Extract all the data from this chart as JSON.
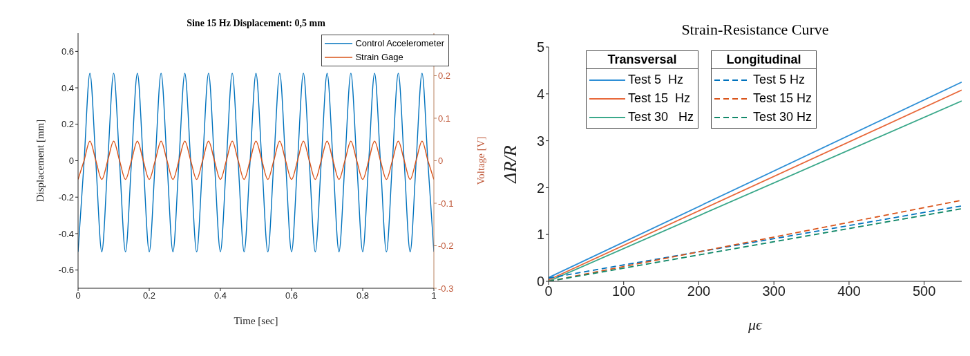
{
  "chart_data": [
    {
      "type": "line",
      "title": "Sine 15 Hz Displacement: 0,5 mm",
      "xlabel": "Time [sec]",
      "ylabel": "Displacement [mm]",
      "y2label": "Voltage [V]",
      "x": [
        0,
        0.0167,
        0.0333,
        0.05,
        0.0667,
        0.0833,
        0.1,
        0.1167,
        0.1333,
        0.15,
        0.1667,
        0.1833,
        0.2,
        0.2167,
        0.2333,
        0.25,
        0.2667,
        0.2833,
        0.3,
        0.3167,
        0.3333,
        0.35,
        0.3667,
        0.3833,
        0.4,
        0.4167,
        0.4333,
        0.45,
        0.4667,
        0.4833,
        0.5,
        0.5167,
        0.5333,
        0.55,
        0.5667,
        0.5833,
        0.6,
        0.6167,
        0.6333,
        0.65,
        0.6667,
        0.6833,
        0.7,
        0.7167,
        0.7333,
        0.75,
        0.7667,
        0.7833,
        0.8,
        0.8167,
        0.8333,
        0.85,
        0.8667,
        0.8833,
        0.9,
        0.9167,
        0.9333,
        0.95,
        0.9667,
        0.9833,
        1
      ],
      "series": [
        {
          "name": "Control Accelerometer",
          "color": "#0072bd",
          "values": [
            -0.5,
            -0.01,
            0.48,
            -0.01,
            -0.5,
            -0.01,
            0.48,
            -0.01,
            -0.5,
            -0.01,
            0.48,
            -0.01,
            -0.5,
            -0.01,
            0.48,
            -0.01,
            -0.5,
            -0.01,
            0.48,
            -0.01,
            -0.5,
            -0.01,
            0.48,
            -0.01,
            -0.5,
            -0.01,
            0.48,
            -0.01,
            -0.5,
            -0.01,
            0.48,
            -0.01,
            -0.5,
            -0.01,
            0.48,
            -0.01,
            -0.5,
            -0.01,
            0.48,
            -0.01,
            -0.5,
            -0.01,
            0.48,
            -0.01,
            -0.5,
            -0.01,
            0.48,
            -0.01,
            -0.5,
            -0.01,
            0.48,
            -0.01,
            -0.5,
            -0.01,
            0.48,
            -0.01,
            -0.5,
            -0.01,
            0.48,
            -0.01,
            -0.5
          ]
        },
        {
          "name": "Strain Gage",
          "color": "#d95319",
          "axis": "y2",
          "values": [
            -0.044,
            0,
            0.046,
            0,
            -0.044,
            0,
            0.046,
            0,
            -0.044,
            0,
            0.046,
            0,
            -0.044,
            0,
            0.046,
            0,
            -0.044,
            0,
            0.046,
            0,
            -0.044,
            0,
            0.046,
            0,
            -0.044,
            0,
            0.046,
            0,
            -0.044,
            0,
            0.046,
            0,
            -0.044,
            0,
            0.046,
            0,
            -0.044,
            0,
            0.046,
            0,
            -0.044,
            0,
            0.046,
            0,
            -0.044,
            0,
            0.046,
            0,
            -0.044,
            0,
            0.046,
            0,
            -0.044,
            0,
            0.046,
            0,
            -0.044,
            0,
            0.046,
            0,
            -0.044
          ]
        }
      ],
      "xlim": [
        0,
        1
      ],
      "xticks": [
        0,
        0.2,
        0.4,
        0.6,
        0.8,
        1
      ],
      "ylim": [
        -0.7,
        0.7
      ],
      "yticks": [
        -0.6,
        -0.4,
        -0.2,
        0,
        0.2,
        0.4,
        0.6
      ],
      "y2lim": [
        -0.3,
        0.3
      ],
      "y2ticks": [
        -0.3,
        -0.2,
        -0.1,
        0,
        0.1,
        0.2
      ],
      "legend": "top right",
      "grid": false,
      "line_style": "solid"
    },
    {
      "type": "line",
      "title": "Strain-Resistance Curve",
      "xlabel": "μϵ",
      "ylabel": "ΔR/R",
      "annotations": [
        "Transversal",
        "Longitudinal"
      ],
      "x": [
        0,
        550
      ],
      "series": [
        {
          "name": "Test 5  Hz",
          "color": "#2e8fd6",
          "values": [
            0.08,
            4.25
          ],
          "line_style": "solid"
        },
        {
          "name": "Test 15  Hz",
          "color": "#e8683a",
          "values": [
            0.03,
            4.08
          ],
          "line_style": "solid"
        },
        {
          "name": "Test 30   Hz",
          "color": "#3aa88a",
          "values": [
            0,
            3.85
          ],
          "line_style": "solid"
        },
        {
          "name": "Test 5 Hz",
          "color": "#0072bd",
          "values": [
            0.07,
            1.61
          ],
          "line_style": "dashed"
        },
        {
          "name": "Test 15 Hz",
          "color": "#d95319",
          "values": [
            0,
            1.73
          ],
          "line_style": "dashed"
        },
        {
          "name": "Test 30 Hz",
          "color": "#13896a",
          "values": [
            0,
            1.55
          ],
          "line_style": "dashed"
        }
      ],
      "xlim": [
        0,
        550
      ],
      "xticks": [
        0,
        100,
        200,
        300,
        400,
        500
      ],
      "ylim": [
        0,
        5
      ],
      "yticks": [
        0,
        1,
        2,
        3,
        4,
        5
      ],
      "legend": "top left",
      "grid": false
    }
  ]
}
